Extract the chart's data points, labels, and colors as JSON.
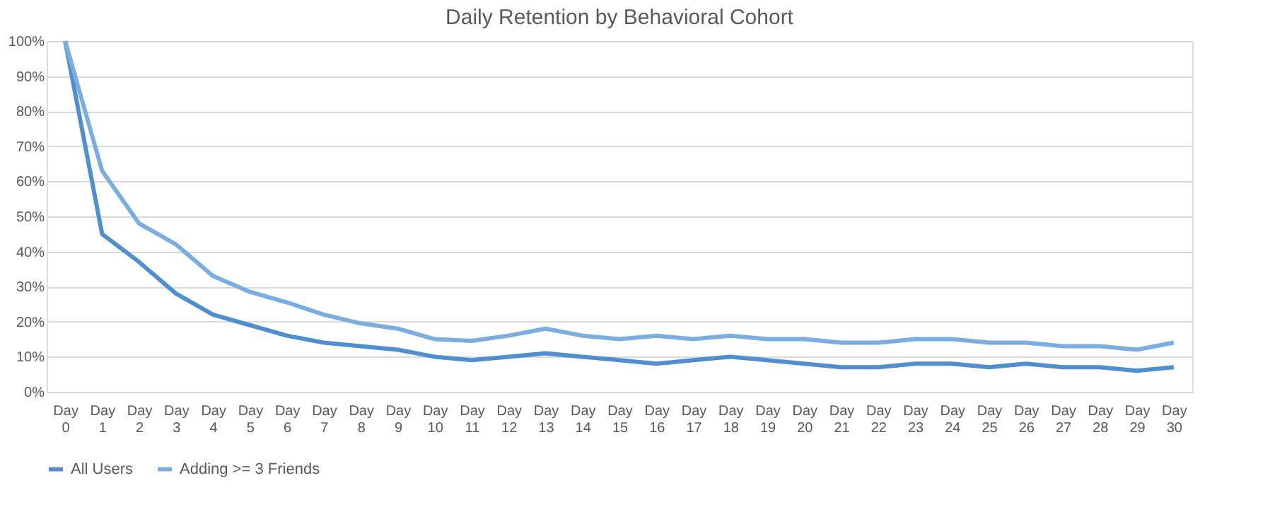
{
  "chart_data": {
    "type": "line",
    "title": "Daily Retention by Behavioral Cohort",
    "categories": [
      "Day 0",
      "Day 1",
      "Day 2",
      "Day 3",
      "Day 4",
      "Day 5",
      "Day 6",
      "Day 7",
      "Day 8",
      "Day 9",
      "Day 10",
      "Day 11",
      "Day 12",
      "Day 13",
      "Day 14",
      "Day 15",
      "Day 16",
      "Day 17",
      "Day 18",
      "Day 19",
      "Day 20",
      "Day 21",
      "Day 22",
      "Day 23",
      "Day 24",
      "Day 25",
      "Day 26",
      "Day 27",
      "Day 28",
      "Day 29",
      "Day 30"
    ],
    "series": [
      {
        "name": "All Users",
        "color": "#4f8fd0",
        "values": [
          100,
          45,
          37,
          28,
          22,
          19,
          16,
          14,
          13,
          12,
          10,
          9,
          10,
          11,
          10,
          9,
          8,
          9,
          10,
          9,
          8,
          7,
          7,
          8,
          8,
          7,
          8,
          7,
          7,
          6,
          7
        ]
      },
      {
        "name": "Adding >= 3 Friends",
        "color": "#7aaee0",
        "values": [
          100,
          63,
          48,
          42,
          33,
          28.5,
          25.5,
          22,
          19.5,
          18,
          15,
          14.5,
          16,
          18,
          16,
          15,
          16,
          15,
          16,
          15,
          15,
          14,
          14,
          15,
          15,
          14,
          14,
          13,
          13,
          12,
          14
        ]
      }
    ],
    "ylim": [
      0,
      100
    ],
    "yticks": [
      {
        "value": 0,
        "label": "0%"
      },
      {
        "value": 10,
        "label": "10%"
      },
      {
        "value": 20,
        "label": "20%"
      },
      {
        "value": 30,
        "label": "30%"
      },
      {
        "value": 40,
        "label": "40%"
      },
      {
        "value": 50,
        "label": "50%"
      },
      {
        "value": 60,
        "label": "60%"
      },
      {
        "value": 70,
        "label": "70%"
      },
      {
        "value": 80,
        "label": "80%"
      },
      {
        "value": 90,
        "label": "90%"
      },
      {
        "value": 100,
        "label": "100%"
      }
    ],
    "grid": "y",
    "legend": "bottom",
    "marker": "none",
    "line_style": "solid"
  }
}
